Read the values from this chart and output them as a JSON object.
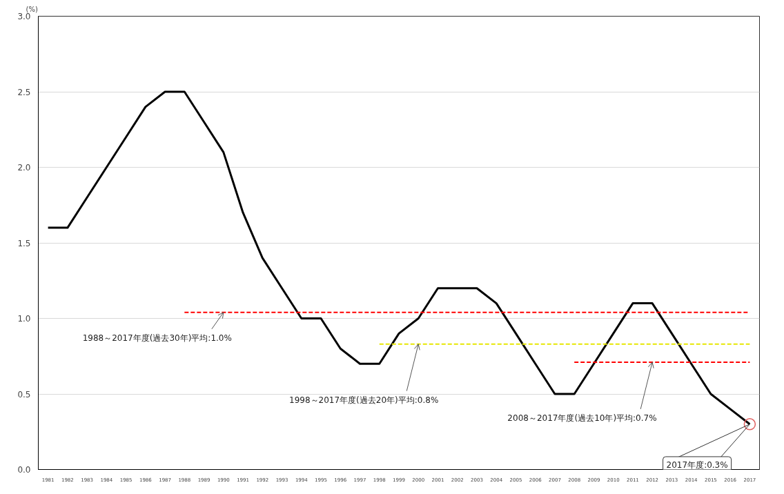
{
  "chart_data": {
    "type": "line",
    "ylabel": "(%)",
    "categories": [
      "1981",
      "1982",
      "1983",
      "1984",
      "1985",
      "1986",
      "1987",
      "1988",
      "1989",
      "1990",
      "1991",
      "1992",
      "1993",
      "1994",
      "1995",
      "1996",
      "1997",
      "1998",
      "1999",
      "2000",
      "2001",
      "2002",
      "2003",
      "2004",
      "2005",
      "2006",
      "2007",
      "2008",
      "2009",
      "2010",
      "2011",
      "2012",
      "2013",
      "2014",
      "2015",
      "2016",
      "2017"
    ],
    "series": [
      {
        "color": "#000000",
        "line_style": "solid",
        "values": [
          1.6,
          1.6,
          1.8,
          2.0,
          2.2,
          2.4,
          2.5,
          2.5,
          2.3,
          2.1,
          1.7,
          1.4,
          1.2,
          1.0,
          1.0,
          0.8,
          0.7,
          0.7,
          0.9,
          1.0,
          1.2,
          1.2,
          1.2,
          1.1,
          0.9,
          0.7,
          0.5,
          0.5,
          0.7,
          0.9,
          1.1,
          1.1,
          0.9,
          0.7,
          0.5,
          0.4,
          0.3
        ]
      },
      {
        "color": "#ff0000",
        "line_style": "dashed",
        "values": [
          null,
          null,
          null,
          null,
          null,
          null,
          null,
          1.04,
          1.04,
          1.04,
          1.04,
          1.04,
          1.04,
          1.04,
          1.04,
          1.04,
          1.04,
          1.04,
          1.04,
          1.04,
          1.04,
          1.04,
          1.04,
          1.04,
          1.04,
          1.04,
          1.04,
          1.04,
          1.04,
          1.04,
          1.04,
          1.04,
          1.04,
          1.04,
          1.04,
          1.04,
          1.04
        ]
      },
      {
        "color": "#e6e600",
        "line_style": "dashed",
        "values": [
          null,
          null,
          null,
          null,
          null,
          null,
          null,
          null,
          null,
          null,
          null,
          null,
          null,
          null,
          null,
          null,
          null,
          0.83,
          0.83,
          0.83,
          0.83,
          0.83,
          0.83,
          0.83,
          0.83,
          0.83,
          0.83,
          0.83,
          0.83,
          0.83,
          0.83,
          0.83,
          0.83,
          0.83,
          0.83,
          0.83,
          0.83
        ]
      },
      {
        "color": "#ff0000",
        "line_style": "dashed",
        "values": [
          null,
          null,
          null,
          null,
          null,
          null,
          null,
          null,
          null,
          null,
          null,
          null,
          null,
          null,
          null,
          null,
          null,
          null,
          null,
          null,
          null,
          null,
          null,
          null,
          null,
          null,
          null,
          0.71,
          0.71,
          0.71,
          0.71,
          0.71,
          0.71,
          0.71,
          0.71,
          0.71,
          0.71
        ]
      }
    ],
    "ylim": [
      0,
      3.0
    ],
    "yticks": [
      {
        "value": 0,
        "label": "0.0"
      },
      {
        "value": 0.5,
        "label": "0.5"
      },
      {
        "value": 1.0,
        "label": "1.0"
      },
      {
        "value": 1.5,
        "label": "1.5"
      },
      {
        "value": 2.0,
        "label": "2.0"
      },
      {
        "value": 2.5,
        "label": "2.5"
      },
      {
        "value": 3.0,
        "label": "3.0"
      }
    ],
    "grid": "y",
    "annotations": [
      {
        "text": "1988～2017年度(過去30年)平均:1.0%",
        "x": "1990",
        "y": 1.04
      },
      {
        "text": "1998～2017年度(過去20年)平均:0.8%",
        "x": "2000",
        "y": 0.83
      },
      {
        "text": "2008～2017年度(過去10年)平均:0.7%",
        "x": "2012",
        "y": 0.71
      },
      {
        "text": "2017年度:0.3%",
        "x": "2017",
        "y": 0.3
      }
    ]
  }
}
